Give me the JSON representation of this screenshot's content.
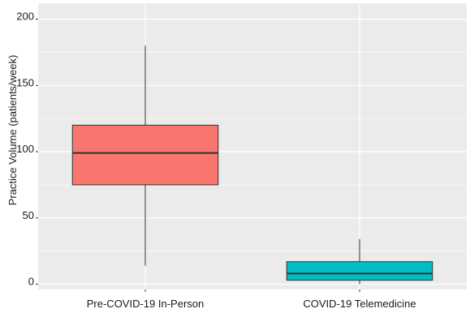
{
  "chart_data": {
    "type": "box",
    "title": "",
    "xlabel": "",
    "ylabel": "Practice Volume (patients/week)",
    "ylim": [
      -4,
      212
    ],
    "yticks": [
      0,
      50,
      100,
      150,
      200
    ],
    "grid": true,
    "legend": "none",
    "categories": [
      "Pre-COVID-19 In-Person",
      "COVID-19 Telemedicine"
    ],
    "boxes": [
      {
        "category": "Pre-COVID-19 In-Person",
        "whisker_low": 14,
        "q1": 75,
        "median": 99,
        "q3": 120,
        "whisker_high": 180,
        "color": "#f8766d"
      },
      {
        "category": "COVID-19 Telemedicine",
        "whisker_low": 0,
        "q1": 3,
        "median": 8,
        "q3": 17,
        "whisker_high": 34,
        "color": "#00bfc4"
      }
    ],
    "panel_color": "#ebebeb",
    "gridline_color": "#ffffff",
    "box_outline_color": "#333333"
  }
}
